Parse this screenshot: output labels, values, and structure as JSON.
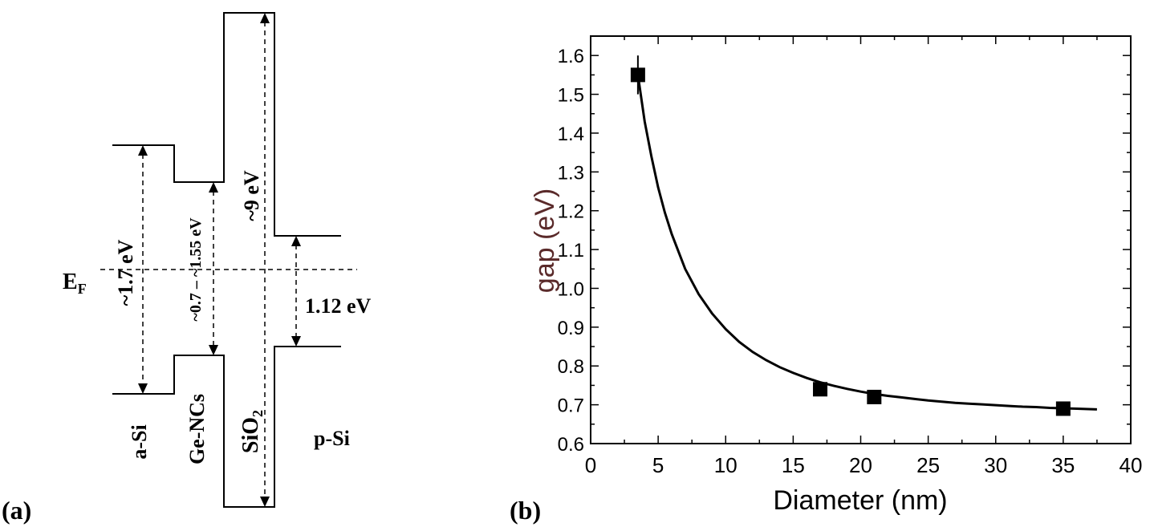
{
  "panel_a": {
    "label": "(a)",
    "fermi_level": "E",
    "fermi_sub": "F",
    "gap_asi": "~1.7 eV",
    "gap_gencs": "~0.7 – ~1.55 eV",
    "gap_sio2": "~9 eV",
    "gap_psi": "1.12 eV",
    "region_asi": "a-Si",
    "region_gencs": "Ge-NCs",
    "region_sio2": "SiO",
    "region_sio2_sub": "2",
    "region_psi": "p-Si"
  },
  "chart_data": {
    "type": "scatter",
    "panel_label": "(b)",
    "xlabel": "Diameter (nm)",
    "ylabel": "gap (eV)",
    "xlim": [
      0,
      40
    ],
    "ylim": [
      0.6,
      1.65
    ],
    "xticks": [
      0,
      5,
      10,
      15,
      20,
      25,
      30,
      35,
      40
    ],
    "yticks": [
      0.6,
      0.7,
      0.8,
      0.9,
      1.0,
      1.1,
      1.2,
      1.3,
      1.4,
      1.5,
      1.6
    ],
    "xtick_labels": [
      "0",
      "5",
      "10",
      "15",
      "20",
      "25",
      "30",
      "35",
      "40"
    ],
    "ytick_labels": [
      "0.6",
      "0.7",
      "0.8",
      "0.9",
      "1.0",
      "1.1",
      "1.2",
      "1.3",
      "1.4",
      "1.5",
      "1.6"
    ],
    "points": [
      {
        "x": 3.5,
        "y": 1.55,
        "err": 0.05
      },
      {
        "x": 17,
        "y": 0.74,
        "err": 0.01
      },
      {
        "x": 21,
        "y": 0.72,
        "err": 0.01
      },
      {
        "x": 35,
        "y": 0.69,
        "err": 0.01
      }
    ],
    "fit_curve": {
      "x": [
        3.5,
        4,
        4.5,
        5,
        5.5,
        6,
        7,
        8,
        9,
        10,
        11,
        12,
        13,
        14,
        15,
        16,
        17,
        18,
        19,
        20,
        21,
        22,
        23,
        24,
        25,
        26,
        27,
        28,
        29,
        30,
        31,
        32,
        33,
        34,
        35,
        36,
        37.5
      ],
      "y": [
        1.55,
        1.43,
        1.34,
        1.26,
        1.195,
        1.14,
        1.05,
        0.985,
        0.935,
        0.895,
        0.862,
        0.836,
        0.815,
        0.797,
        0.782,
        0.769,
        0.758,
        0.749,
        0.741,
        0.734,
        0.728,
        0.723,
        0.719,
        0.715,
        0.711,
        0.708,
        0.705,
        0.703,
        0.701,
        0.699,
        0.697,
        0.695,
        0.694,
        0.692,
        0.691,
        0.69,
        0.688
      ]
    },
    "grid": false,
    "legend": "none"
  }
}
